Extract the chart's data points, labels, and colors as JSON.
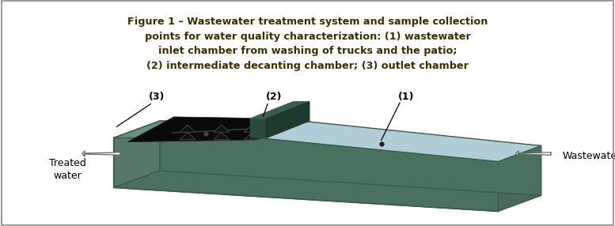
{
  "fig_width": 7.77,
  "fig_height": 2.86,
  "dpi": 100,
  "caption_bg_color": "#F5A800",
  "caption_text_color": "#3A2E00",
  "caption_lines": [
    "Figure 1 – Wastewater treatment system and sample collection",
    "points for water quality characterization: (1) wastewater",
    "inlet chamber from washing of trucks and the patio;",
    "(2) intermediate decanting chamber; (3) outlet chamber"
  ],
  "caption_font_size": 9.2,
  "caption_font_weight": "bold",
  "outer_border_color": "#999999",
  "tank_green": "#6A9080",
  "tank_green_dark": "#4A7060",
  "tank_green_side": "#567868",
  "tank_green_bottom": "#4A6858",
  "water_blue": "#B0CDD8",
  "water_blue2": "#9ABFCC",
  "dark_chamber": "#111111",
  "dark_chamber2": "#1A1A1A",
  "baffle_color": "#2A4A3C",
  "bg_color": "#FFFFFF",
  "label_font_size": 9,
  "side_label_font_size": 9
}
